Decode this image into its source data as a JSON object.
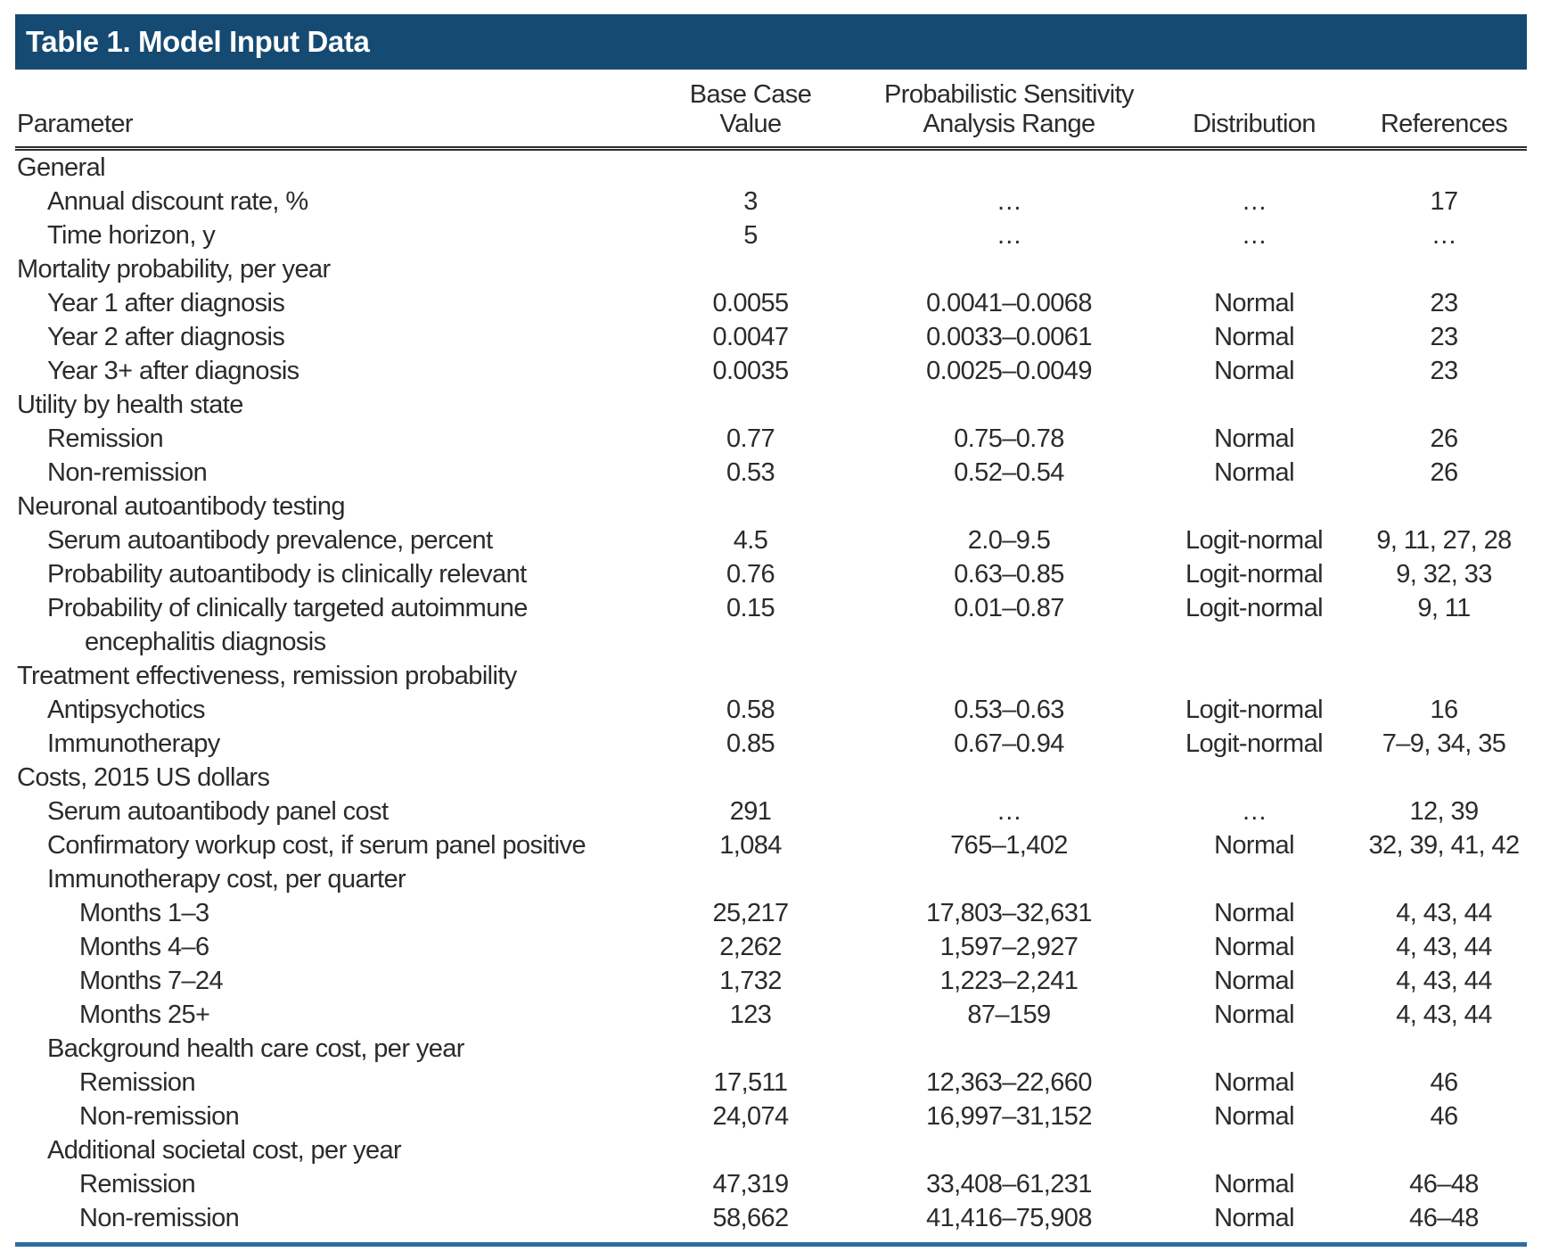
{
  "table": {
    "title": "Table 1. Model Input Data",
    "header": {
      "parameter": "Parameter",
      "base_case_line1": "Base Case",
      "base_case_line2": "Value",
      "psa_line1": "Probabilistic Sensitivity",
      "psa_line2": "Analysis Range",
      "distribution": "Distribution",
      "references": "References"
    },
    "colors": {
      "title_bar": "#154a72",
      "bottom_rule": "#2e6ba3",
      "text": "#2b2b2b"
    },
    "rows": [
      {
        "label": "General",
        "indent": 0,
        "base": "",
        "range": "",
        "dist": "",
        "refs": ""
      },
      {
        "label": "Annual discount rate, %",
        "indent": 1,
        "base": "3",
        "range": "…",
        "dist": "…",
        "refs": "17"
      },
      {
        "label": "Time horizon, y",
        "indent": 1,
        "base": "5",
        "range": "…",
        "dist": "…",
        "refs": "…"
      },
      {
        "label": "Mortality probability, per year",
        "indent": 0,
        "base": "",
        "range": "",
        "dist": "",
        "refs": ""
      },
      {
        "label": "Year 1 after diagnosis",
        "indent": 1,
        "base": "0.0055",
        "range": "0.0041–0.0068",
        "dist": "Normal",
        "refs": "23"
      },
      {
        "label": "Year 2 after diagnosis",
        "indent": 1,
        "base": "0.0047",
        "range": "0.0033–0.0061",
        "dist": "Normal",
        "refs": "23"
      },
      {
        "label": "Year 3+ after diagnosis",
        "indent": 1,
        "base": "0.0035",
        "range": "0.0025–0.0049",
        "dist": "Normal",
        "refs": "23"
      },
      {
        "label": "Utility by health state",
        "indent": 0,
        "base": "",
        "range": "",
        "dist": "",
        "refs": ""
      },
      {
        "label": "Remission",
        "indent": 1,
        "base": "0.77",
        "range": "0.75–0.78",
        "dist": "Normal",
        "refs": "26"
      },
      {
        "label": "Non-remission",
        "indent": 1,
        "base": "0.53",
        "range": "0.52–0.54",
        "dist": "Normal",
        "refs": "26"
      },
      {
        "label": "Neuronal autoantibody testing",
        "indent": 0,
        "base": "",
        "range": "",
        "dist": "",
        "refs": ""
      },
      {
        "label": "Serum autoantibody prevalence, percent",
        "indent": 1,
        "base": "4.5",
        "range": "2.0–9.5",
        "dist": "Logit-normal",
        "refs": "9, 11, 27, 28"
      },
      {
        "label": "Probability autoantibody is clinically relevant",
        "indent": 1,
        "base": "0.76",
        "range": "0.63–0.85",
        "dist": "Logit-normal",
        "refs": "9, 32, 33"
      },
      {
        "label": "Probability of clinically targeted autoimmune",
        "label2": "encephalitis diagnosis",
        "indent": 1,
        "base": "0.15",
        "range": "0.01–0.87",
        "dist": "Logit-normal",
        "refs": "9, 11"
      },
      {
        "label": "Treatment effectiveness, remission probability",
        "indent": 0,
        "base": "",
        "range": "",
        "dist": "",
        "refs": ""
      },
      {
        "label": "Antipsychotics",
        "indent": 1,
        "base": "0.58",
        "range": "0.53–0.63",
        "dist": "Logit-normal",
        "refs": "16"
      },
      {
        "label": "Immunotherapy",
        "indent": 1,
        "base": "0.85",
        "range": "0.67–0.94",
        "dist": "Logit-normal",
        "refs": "7–9, 34, 35"
      },
      {
        "label": "Costs, 2015 US dollars",
        "indent": 0,
        "base": "",
        "range": "",
        "dist": "",
        "refs": ""
      },
      {
        "label": "Serum autoantibody panel cost",
        "indent": 1,
        "base": "291",
        "range": "…",
        "dist": "…",
        "refs": "12, 39"
      },
      {
        "label": "Confirmatory workup cost, if serum panel positive",
        "indent": 1,
        "base": "1,084",
        "range": "765–1,402",
        "dist": "Normal",
        "refs": "32, 39, 41, 42"
      },
      {
        "label": "Immunotherapy cost, per quarter",
        "indent": 1,
        "base": "",
        "range": "",
        "dist": "",
        "refs": ""
      },
      {
        "label": "Months 1–3",
        "indent": 2,
        "base": "25,217",
        "range": "17,803–32,631",
        "dist": "Normal",
        "refs": "4, 43, 44"
      },
      {
        "label": "Months 4–6",
        "indent": 2,
        "base": "2,262",
        "range": "1,597–2,927",
        "dist": "Normal",
        "refs": "4, 43, 44"
      },
      {
        "label": "Months 7–24",
        "indent": 2,
        "base": "1,732",
        "range": "1,223–2,241",
        "dist": "Normal",
        "refs": "4, 43, 44"
      },
      {
        "label": "Months 25+",
        "indent": 2,
        "base": "123",
        "range": "87–159",
        "dist": "Normal",
        "refs": "4, 43, 44"
      },
      {
        "label": "Background health care cost, per year",
        "indent": 1,
        "base": "",
        "range": "",
        "dist": "",
        "refs": ""
      },
      {
        "label": "Remission",
        "indent": 2,
        "base": "17,511",
        "range": "12,363–22,660",
        "dist": "Normal",
        "refs": "46"
      },
      {
        "label": "Non-remission",
        "indent": 2,
        "base": "24,074",
        "range": "16,997–31,152",
        "dist": "Normal",
        "refs": "46"
      },
      {
        "label": "Additional societal cost, per year",
        "indent": 1,
        "base": "",
        "range": "",
        "dist": "",
        "refs": ""
      },
      {
        "label": "Remission",
        "indent": 2,
        "base": "47,319",
        "range": "33,408–61,231",
        "dist": "Normal",
        "refs": "46–48"
      },
      {
        "label": "Non-remission",
        "indent": 2,
        "base": "58,662",
        "range": "41,416–75,908",
        "dist": "Normal",
        "refs": "46–48"
      }
    ]
  }
}
